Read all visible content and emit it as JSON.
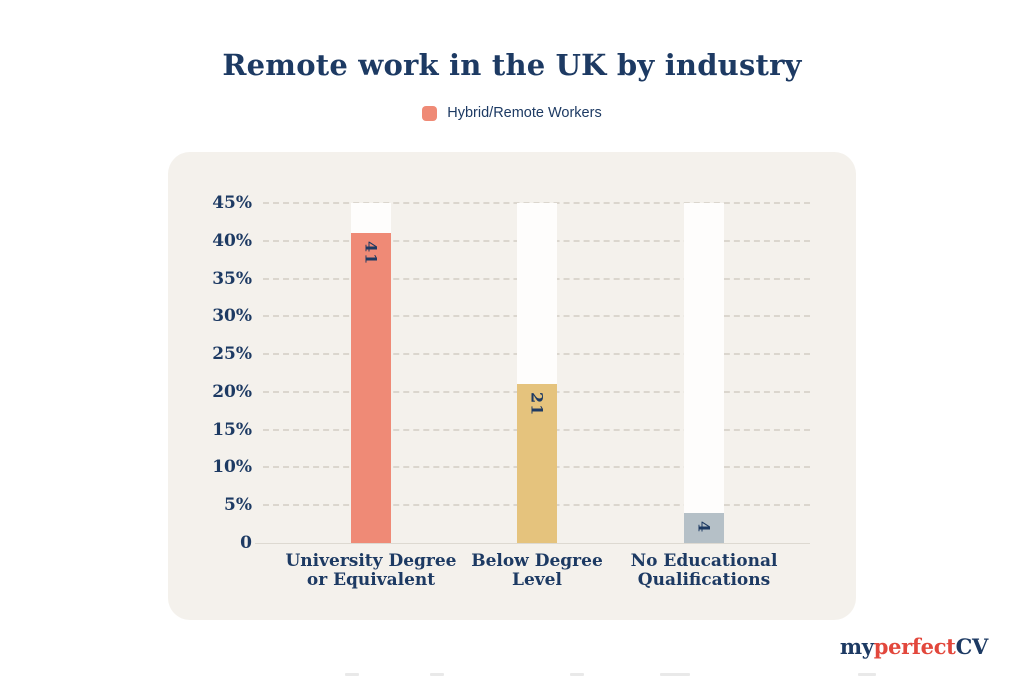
{
  "header": {
    "title": "Remote work in the UK by industry"
  },
  "legend": {
    "label": "Hybrid/Remote Workers",
    "swatch_color": "#ef8a76"
  },
  "chart_data": {
    "type": "bar",
    "title": "Remote work in the UK by industry",
    "legend_entries": [
      "Hybrid/Remote Workers"
    ],
    "legend_position": "top-center",
    "categories": [
      [
        "University Degree",
        "or Equivalent"
      ],
      [
        "Below Degree",
        "Level"
      ],
      [
        "No Educational",
        "Qualifications"
      ]
    ],
    "values": [
      41,
      21,
      4
    ],
    "value_labels": [
      "41",
      "21",
      "4"
    ],
    "bar_colors": [
      "#ef8a76",
      "#e5c37d",
      "#b5c0c7"
    ],
    "y_ticks": [
      {
        "value": 45,
        "label": "45%"
      },
      {
        "value": 40,
        "label": "40%"
      },
      {
        "value": 35,
        "label": "35%"
      },
      {
        "value": 30,
        "label": "30%"
      },
      {
        "value": 25,
        "label": "25%"
      },
      {
        "value": 20,
        "label": "20%"
      },
      {
        "value": 15,
        "label": "15%"
      },
      {
        "value": 10,
        "label": "10%"
      },
      {
        "value": 5,
        "label": "5%"
      },
      {
        "value": 0,
        "label": "0"
      }
    ],
    "ylim": [
      0,
      45
    ],
    "xlabel": "",
    "ylabel": "",
    "grid": "horizontal-dashed",
    "panel_color": "#f4f1ec",
    "track_color": "#fefdfc",
    "text_color": "#1d3a63"
  },
  "footer": {
    "logo": {
      "part1": "my",
      "part2": "perfect",
      "part3": "CV"
    }
  }
}
